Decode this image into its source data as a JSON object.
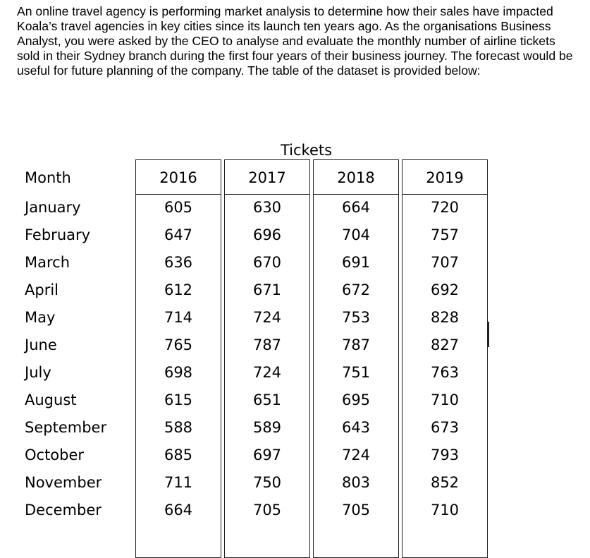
{
  "intro_text": "An online travel agency is performing market analysis to determine how their sales have impacted Koala’s travel agencies in key cities since its launch ten years ago. As the organisations Business Analyst, you were asked by the CEO to analyse and evaluate the monthly number of airline tickets sold in their Sydney branch during the first four years of their business journey. The forecast would be useful for future planning of the company. The table of the dataset is provided below:",
  "table": {
    "title": "Tickets",
    "month_header": "Month",
    "months": [
      "January",
      "February",
      "March",
      "April",
      "May",
      "June",
      "July",
      "August",
      "September",
      "October",
      "November",
      "December"
    ],
    "years": [
      {
        "year": "2016",
        "values": [
          "605",
          "647",
          "636",
          "612",
          "714",
          "765",
          "698",
          "615",
          "588",
          "685",
          "711",
          "664"
        ]
      },
      {
        "year": "2017",
        "values": [
          "630",
          "696",
          "670",
          "671",
          "724",
          "787",
          "724",
          "651",
          "589",
          "697",
          "750",
          "705"
        ]
      },
      {
        "year": "2018",
        "values": [
          "664",
          "704",
          "691",
          "672",
          "753",
          "787",
          "751",
          "695",
          "643",
          "724",
          "803",
          "705"
        ]
      },
      {
        "year": "2019",
        "values": [
          "720",
          "757",
          "707",
          "692",
          "828",
          "827",
          "763",
          "710",
          "673",
          "793",
          "852",
          "710"
        ]
      }
    ]
  }
}
